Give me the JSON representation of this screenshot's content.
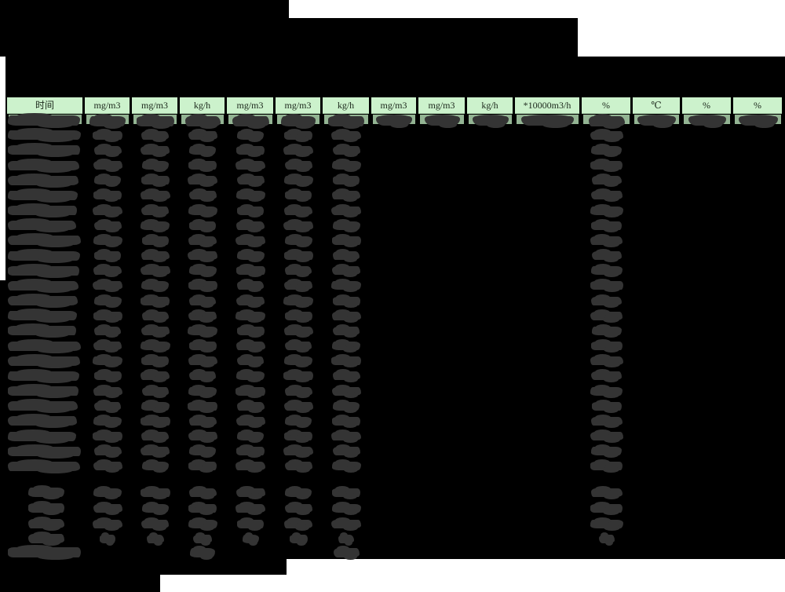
{
  "table": {
    "columns": [
      "时间",
      "mg/m3",
      "mg/m3",
      "kg/h",
      "mg/m3",
      "mg/m3",
      "kg/h",
      "mg/m3",
      "mg/m3",
      "kg/h",
      "*10000m3/h",
      "%",
      "℃",
      "%",
      "%"
    ],
    "main_data_rows": 24,
    "summary_rows": 4,
    "footer_rows": 1,
    "values_redacted": true
  },
  "colors": {
    "page_bg": "#ffffff",
    "redaction": "#000000",
    "blob": "#343434",
    "header_bg": "#ccf2cc",
    "subrow_bg": "#93b493",
    "header_text": "#1c281c"
  }
}
